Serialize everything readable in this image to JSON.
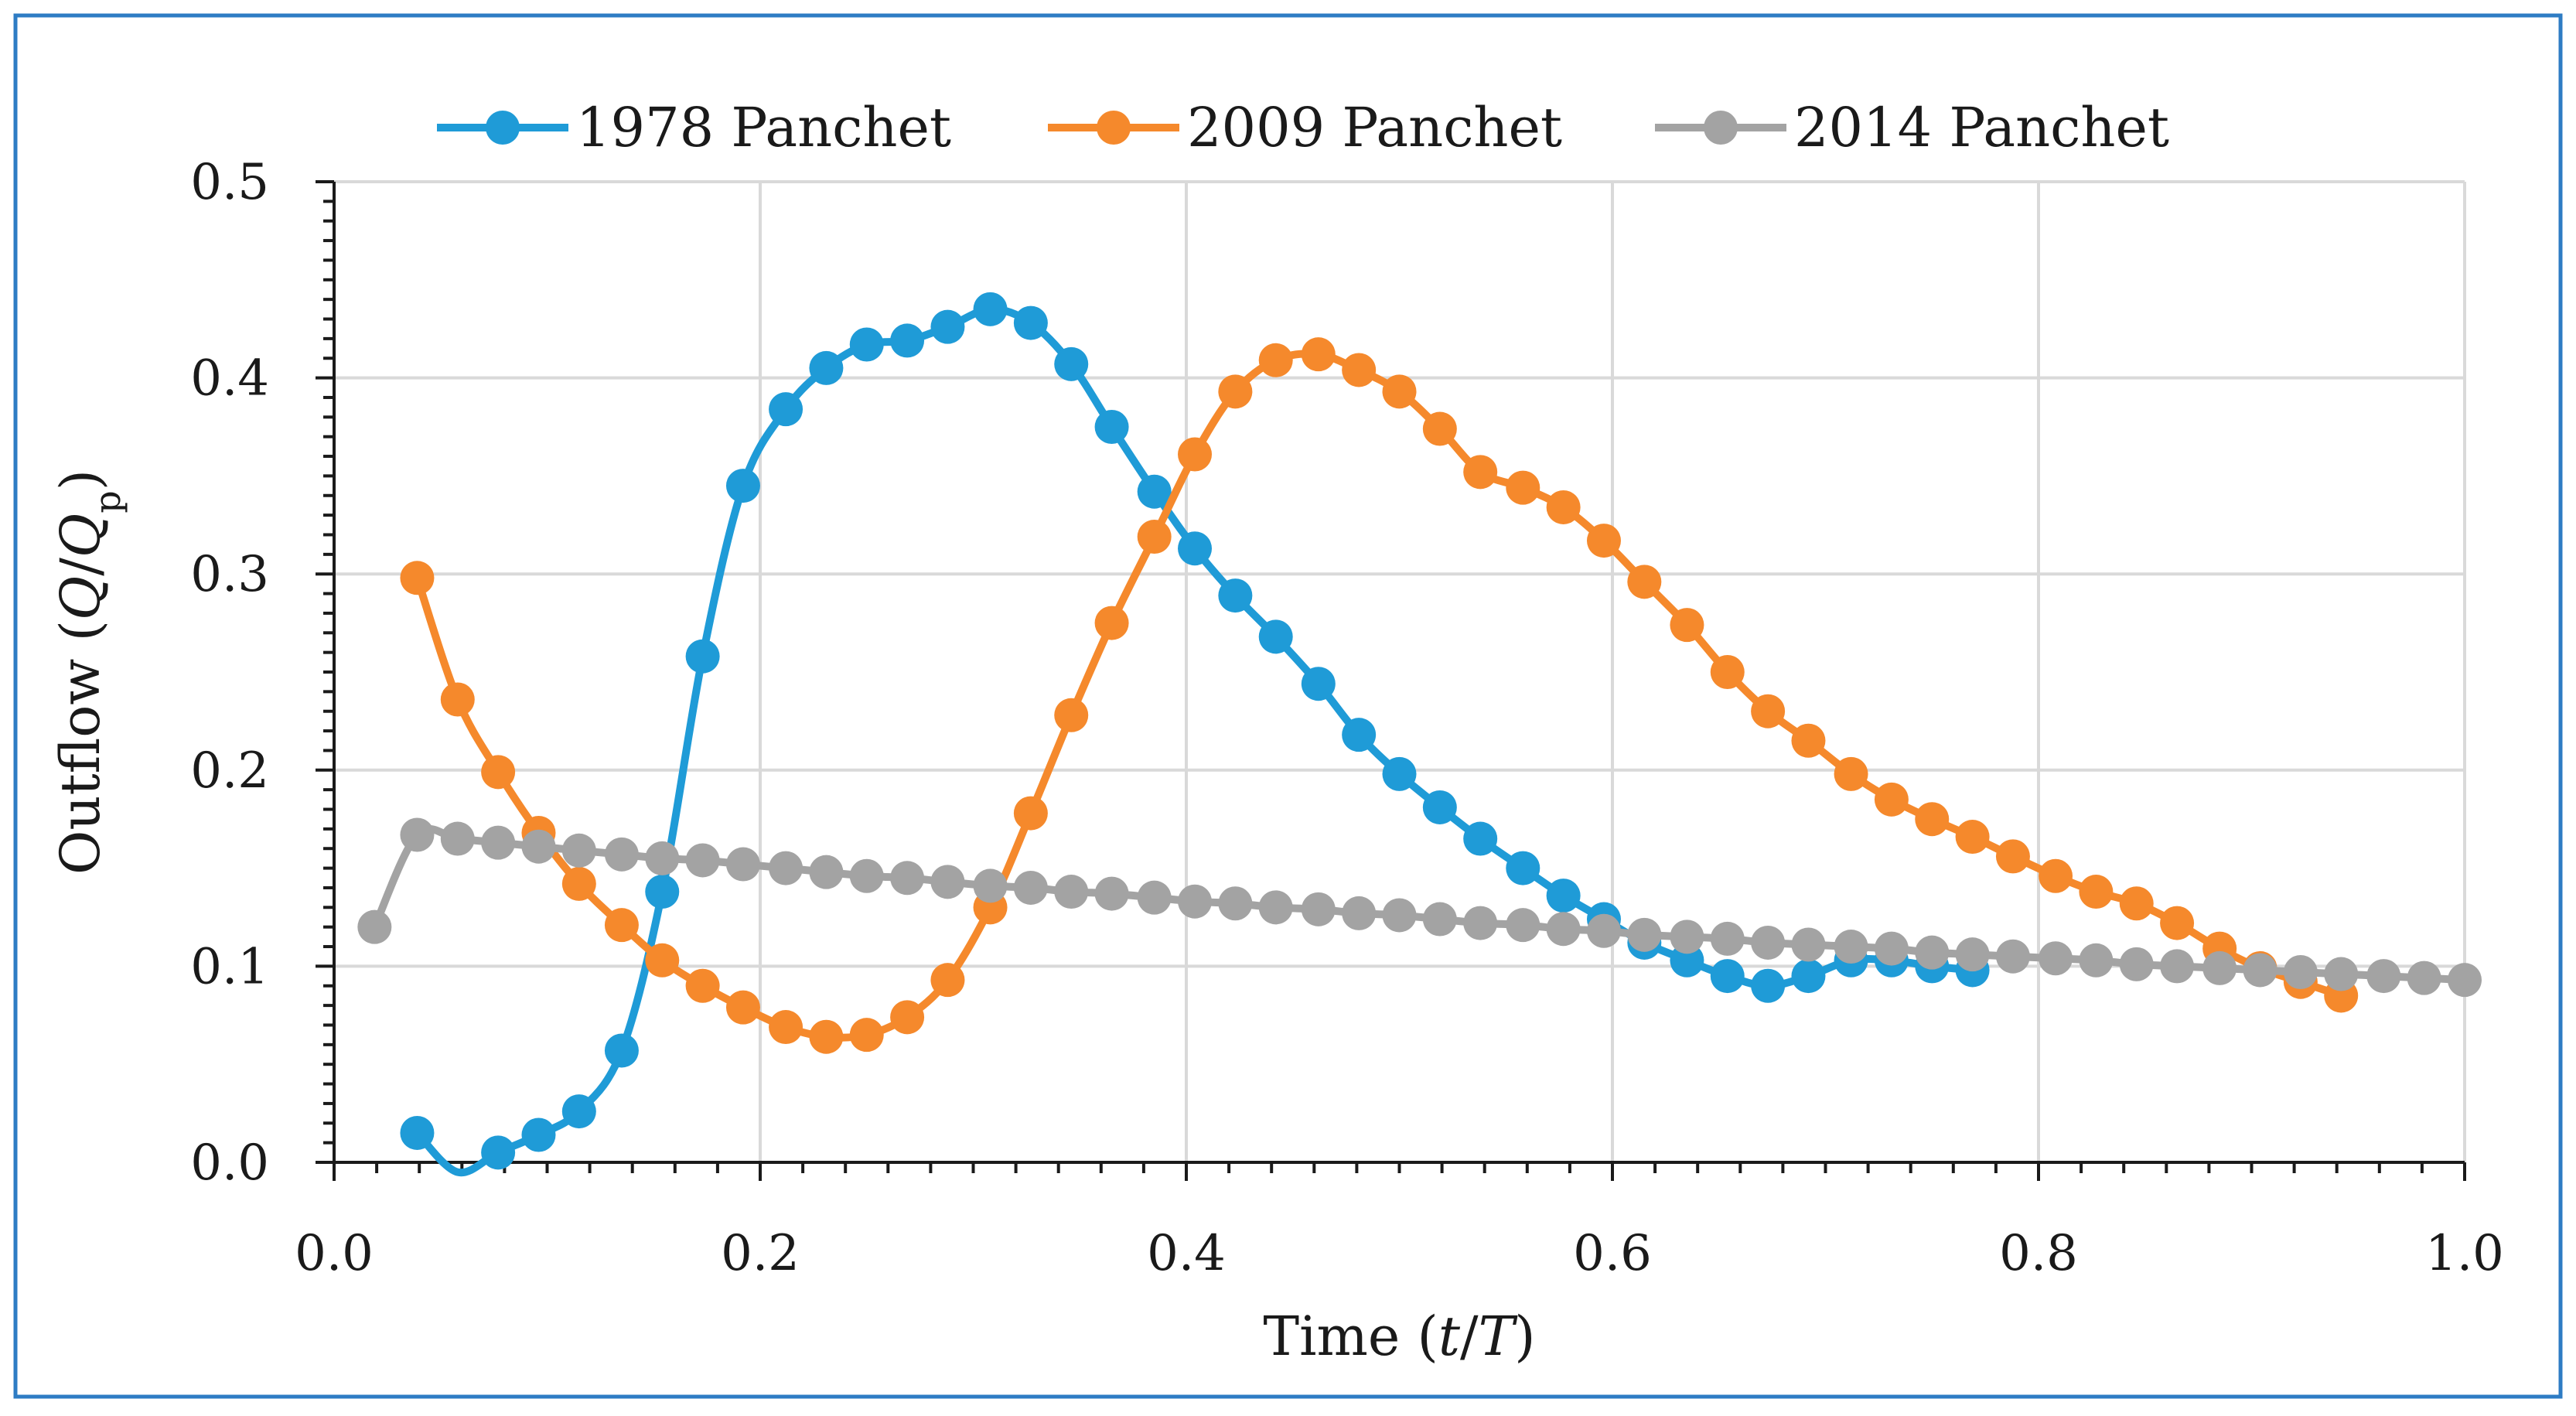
{
  "chart_data": {
    "type": "line",
    "title": "",
    "xlabel": "Time (t/T)",
    "ylabel": "Outflow (Q/Qp)",
    "xlim": [
      0.0,
      1.0
    ],
    "ylim": [
      0.0,
      0.5
    ],
    "x_ticks": [
      "0.0",
      "0.2",
      "0.4",
      "0.6",
      "0.8",
      "1.0"
    ],
    "y_ticks": [
      "0.0",
      "0.1",
      "0.2",
      "0.3",
      "0.4",
      "0.5"
    ],
    "grid": true,
    "legend": "top",
    "series": [
      {
        "name": "1978 Panchet",
        "color": "#1f9bd7",
        "x": [
          0.039,
          0.058,
          0.077,
          0.096,
          0.115,
          0.135,
          0.154,
          0.173,
          0.192,
          0.212,
          0.231,
          0.25,
          0.269,
          0.288,
          0.308,
          0.327,
          0.346,
          0.365,
          0.385,
          0.404,
          0.423,
          0.442,
          0.462,
          0.481,
          0.5,
          0.519,
          0.538,
          0.558,
          0.577,
          0.596,
          0.615,
          0.635,
          0.654,
          0.673,
          0.692,
          0.712,
          0.731,
          0.75,
          0.769
        ],
        "y": [
          0.015,
          -0.005,
          0.005,
          0.014,
          0.026,
          0.057,
          0.138,
          0.258,
          0.345,
          0.384,
          0.405,
          0.417,
          0.419,
          0.426,
          0.435,
          0.428,
          0.407,
          0.375,
          0.342,
          0.313,
          0.289,
          0.268,
          0.244,
          0.218,
          0.198,
          0.181,
          0.165,
          0.15,
          0.136,
          0.124,
          0.112,
          0.103,
          0.095,
          0.09,
          0.095,
          0.103,
          0.103,
          0.1,
          0.098
        ]
      },
      {
        "name": "2009 Panchet",
        "color": "#f5892c",
        "x": [
          0.039,
          0.058,
          0.077,
          0.096,
          0.115,
          0.135,
          0.154,
          0.173,
          0.192,
          0.212,
          0.231,
          0.25,
          0.269,
          0.288,
          0.308,
          0.327,
          0.346,
          0.365,
          0.385,
          0.404,
          0.423,
          0.442,
          0.462,
          0.481,
          0.5,
          0.519,
          0.538,
          0.558,
          0.577,
          0.596,
          0.615,
          0.635,
          0.654,
          0.673,
          0.692,
          0.712,
          0.731,
          0.75,
          0.769,
          0.788,
          0.808,
          0.827,
          0.846,
          0.865,
          0.885,
          0.904,
          0.923,
          0.942
        ],
        "y": [
          0.298,
          0.236,
          0.199,
          0.168,
          0.142,
          0.121,
          0.103,
          0.09,
          0.079,
          0.069,
          0.064,
          0.065,
          0.074,
          0.093,
          0.13,
          0.178,
          0.228,
          0.275,
          0.319,
          0.361,
          0.393,
          0.409,
          0.412,
          0.404,
          0.393,
          0.374,
          0.352,
          0.344,
          0.334,
          0.317,
          0.296,
          0.274,
          0.25,
          0.23,
          0.215,
          0.198,
          0.185,
          0.175,
          0.166,
          0.156,
          0.146,
          0.138,
          0.132,
          0.122,
          0.109,
          0.099,
          0.092,
          0.085
        ]
      },
      {
        "name": "2014 Panchet",
        "color": "#a3a3a3",
        "x": [
          0.019,
          0.039,
          0.058,
          0.077,
          0.096,
          0.115,
          0.135,
          0.154,
          0.173,
          0.192,
          0.212,
          0.231,
          0.25,
          0.269,
          0.288,
          0.308,
          0.327,
          0.346,
          0.365,
          0.385,
          0.404,
          0.423,
          0.442,
          0.462,
          0.481,
          0.5,
          0.519,
          0.538,
          0.558,
          0.577,
          0.596,
          0.615,
          0.635,
          0.654,
          0.673,
          0.692,
          0.712,
          0.731,
          0.75,
          0.769,
          0.788,
          0.808,
          0.827,
          0.846,
          0.865,
          0.885,
          0.904,
          0.923,
          0.942,
          0.962,
          0.981,
          1.0
        ],
        "y": [
          0.12,
          0.167,
          0.165,
          0.163,
          0.161,
          0.159,
          0.157,
          0.155,
          0.154,
          0.152,
          0.15,
          0.148,
          0.146,
          0.145,
          0.143,
          0.141,
          0.14,
          0.138,
          0.137,
          0.135,
          0.133,
          0.132,
          0.13,
          0.129,
          0.127,
          0.126,
          0.124,
          0.122,
          0.121,
          0.119,
          0.118,
          0.116,
          0.115,
          0.114,
          0.112,
          0.111,
          0.11,
          0.109,
          0.107,
          0.106,
          0.105,
          0.104,
          0.103,
          0.101,
          0.1,
          0.099,
          0.098,
          0.097,
          0.096,
          0.095,
          0.094,
          0.093
        ]
      }
    ]
  },
  "frame": {
    "border_color": "#2e7cc4"
  }
}
